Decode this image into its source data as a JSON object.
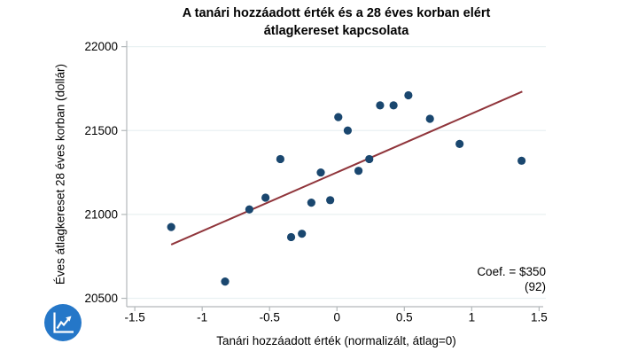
{
  "chart_data": {
    "type": "scatter",
    "title": "A tanári hozzáadott érték és a 28 éves korban elért átlagkereset kapcsolata",
    "title_line1": "A tanári hozzáadott érték és a 28 éves korban elért",
    "title_line2": "átlagkereset kapcsolata",
    "xlabel": "Tanári hozzáadott érték (normalizált, átlag=0)",
    "ylabel": "Éves átlagkereset 28 éves korban (dollár)",
    "xlim": [
      -1.56,
      1.55
    ],
    "ylim": [
      20450,
      22035
    ],
    "xtick_values": [
      -1.5,
      -1,
      -0.5,
      0,
      0.5,
      1,
      1.5
    ],
    "xtick_labels": [
      "-1.5",
      "-1",
      "-0.5",
      "0",
      "0.5",
      "1",
      "1.5"
    ],
    "ytick_values": [
      20500,
      21000,
      21500,
      22000
    ],
    "ytick_labels": [
      "20500",
      "21000",
      "21500",
      "22000"
    ],
    "grid": "horizontal",
    "legend": "none",
    "points": [
      [
        -1.23,
        20925
      ],
      [
        -0.83,
        20600
      ],
      [
        -0.65,
        21030
      ],
      [
        -0.53,
        21100
      ],
      [
        -0.42,
        21330
      ],
      [
        -0.34,
        20865
      ],
      [
        -0.26,
        20885
      ],
      [
        -0.19,
        21070
      ],
      [
        -0.12,
        21250
      ],
      [
        -0.05,
        21085
      ],
      [
        0.01,
        21580
      ],
      [
        0.08,
        21500
      ],
      [
        0.16,
        21260
      ],
      [
        0.24,
        21330
      ],
      [
        0.32,
        21650
      ],
      [
        0.42,
        21650
      ],
      [
        0.53,
        21710
      ],
      [
        0.69,
        21570
      ],
      [
        0.91,
        21420
      ],
      [
        1.37,
        21320
      ]
    ],
    "trendline": {
      "x1": -1.23,
      "y1": 20820,
      "x2": 1.375,
      "y2": 21732
    },
    "annotation": {
      "line1": "Coef. = $350",
      "line2": "(92)"
    },
    "colors": {
      "point": "#1a476f",
      "trendline": "#90353b",
      "gridline": "#e9f1f2",
      "axis": "#b3b8ba",
      "logo": "#2577c8"
    }
  },
  "logo": {
    "icon": "line-chart-icon"
  }
}
